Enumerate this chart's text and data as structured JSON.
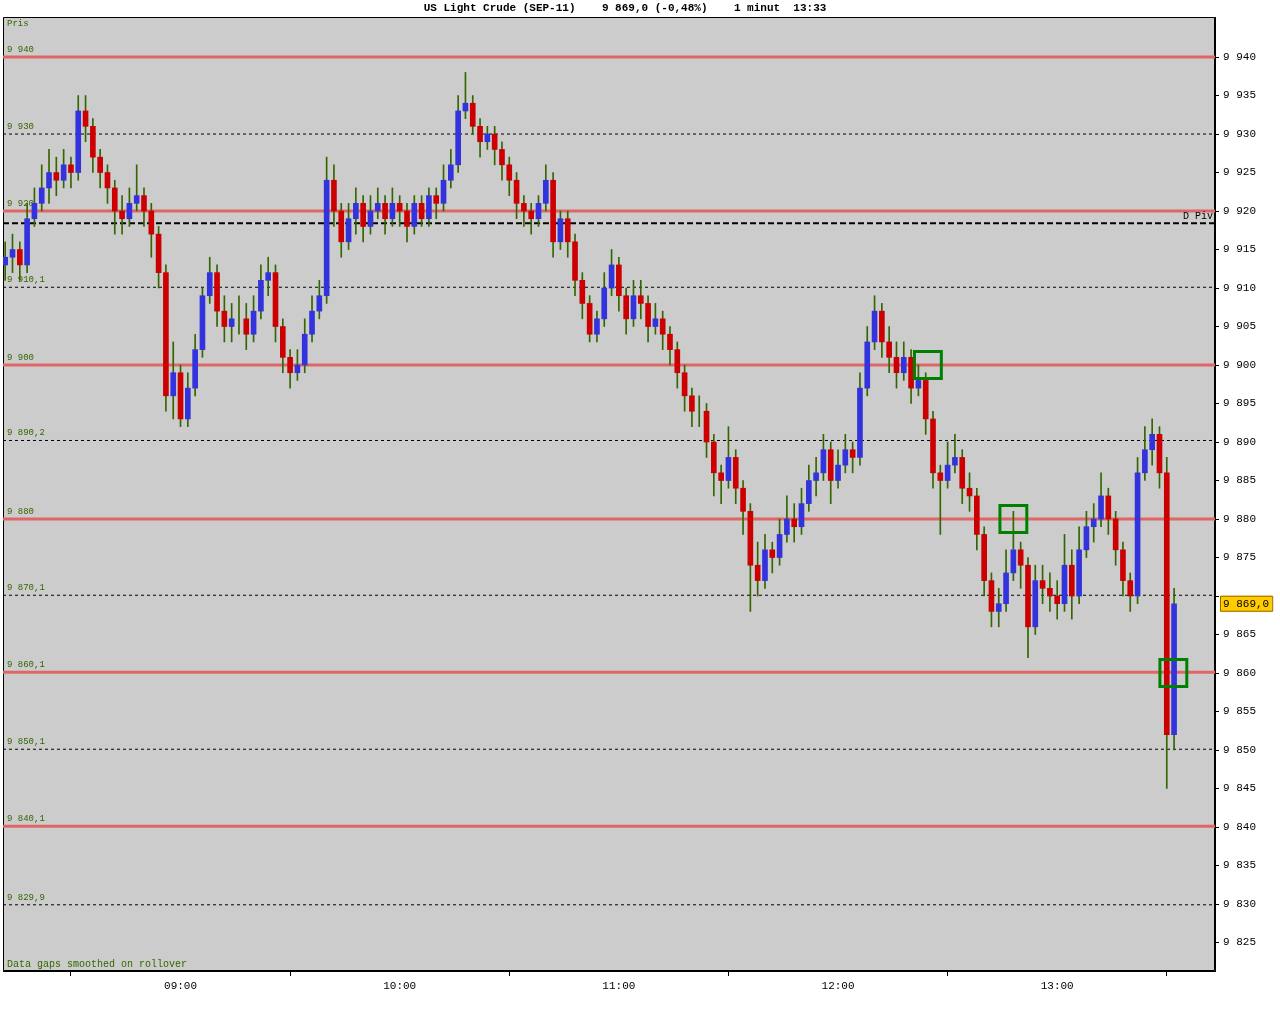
{
  "chart_data": {
    "type": "candlestick",
    "title": "US Light Crude (SEP-11)    9 869,0 (-0,48%)    1 minut  13:33",
    "ylabel": "Pris",
    "x": [
      8.2,
      8.2333,
      8.2667,
      8.3,
      8.3333,
      8.3667,
      8.4,
      8.4333,
      8.4667,
      8.5,
      8.5333,
      8.5667,
      8.6,
      8.6333,
      8.6667,
      8.7,
      8.7333,
      8.7667,
      8.8,
      8.8333,
      8.8667,
      8.9,
      8.9333,
      8.9667,
      9,
      9.0333,
      9.0667,
      9.1,
      9.1333,
      9.1667,
      9.2,
      9.2333,
      9.2667,
      9.3,
      9.3333,
      9.3667,
      9.4,
      9.4333,
      9.4667,
      9.5,
      9.5333,
      9.5667,
      9.6,
      9.6333,
      9.6667,
      9.7,
      9.7333,
      9.7667,
      9.8,
      9.8333,
      9.8667,
      9.9,
      9.9333,
      9.9667,
      10,
      10.0333,
      10.0667,
      10.1,
      10.1333,
      10.1667,
      10.2,
      10.2333,
      10.2667,
      10.3,
      10.3333,
      10.3667,
      10.4,
      10.4333,
      10.4667,
      10.5,
      10.5333,
      10.5667,
      10.6,
      10.6333,
      10.6667,
      10.7,
      10.7333,
      10.7667,
      10.8,
      10.8333,
      10.8667,
      10.9,
      10.9333,
      10.9667,
      11,
      11.0333,
      11.0667,
      11.1,
      11.1333,
      11.1667,
      11.2,
      11.2333,
      11.2667,
      11.3,
      11.3333,
      11.3667,
      11.4,
      11.4333,
      11.4667,
      11.5,
      11.5333,
      11.5667,
      11.6,
      11.6333,
      11.6667,
      11.7,
      11.7333,
      11.7667,
      11.8,
      11.8333,
      11.8667,
      11.9,
      11.9333,
      11.9667,
      12,
      12.0333,
      12.0667,
      12.1,
      12.1333,
      12.1667,
      12.2,
      12.2333,
      12.2667,
      12.3,
      12.3333,
      12.3667,
      12.4,
      12.4333,
      12.4667,
      12.5,
      12.5333,
      12.5667,
      12.6,
      12.6333,
      12.6667,
      12.7,
      12.7333,
      12.7667,
      12.8,
      12.8333,
      12.8667,
      12.9,
      12.9333,
      12.9667,
      13,
      13.0333,
      13.0667,
      13.1,
      13.1333,
      13.1667,
      13.2,
      13.2333,
      13.2667,
      13.3,
      13.3333,
      13.3667,
      13.4,
      13.4333,
      13.4667,
      13.5,
      13.5333
    ],
    "ohlc": [
      [
        9913,
        9916,
        9911,
        9914
      ],
      [
        9914,
        9917,
        9912,
        9915
      ],
      [
        9915,
        9916,
        9911,
        9913
      ],
      [
        9913,
        9921,
        9912,
        9919
      ],
      [
        9919,
        9923,
        9918,
        9921
      ],
      [
        9921,
        9926,
        9920,
        9923
      ],
      [
        9923,
        9928,
        9921,
        9925
      ],
      [
        9925,
        9927,
        9922,
        9924
      ],
      [
        9924,
        9928,
        9923,
        9926
      ],
      [
        9926,
        9927,
        9923,
        9925
      ],
      [
        9925,
        9935,
        9924,
        9933
      ],
      [
        9933,
        9935,
        9929,
        9931
      ],
      [
        9931,
        9932,
        9925,
        9927
      ],
      [
        9927,
        9928,
        9923,
        9925
      ],
      [
        9925,
        9926,
        9921,
        9923
      ],
      [
        9923,
        9924,
        9917,
        9920
      ],
      [
        9920,
        9922,
        9917,
        9919
      ],
      [
        9919,
        9923,
        9918,
        9921
      ],
      [
        9921,
        9926,
        9920,
        9922
      ],
      [
        9922,
        9923,
        9918,
        9920
      ],
      [
        9920,
        9921,
        9914,
        9917
      ],
      [
        9917,
        9918,
        9910,
        9912
      ],
      [
        9912,
        9913,
        9894,
        9896
      ],
      [
        9896,
        9903,
        9893,
        9899
      ],
      [
        9899,
        9900,
        9892,
        9893
      ],
      [
        9893,
        9899,
        9892,
        9897
      ],
      [
        9897,
        9904,
        9896,
        9902
      ],
      [
        9902,
        9910,
        9901,
        9909
      ],
      [
        9909,
        9914,
        9908,
        9912
      ],
      [
        9912,
        9913,
        9905,
        9907
      ],
      [
        9907,
        9909,
        9903,
        9905
      ],
      [
        9905,
        9908,
        9903,
        9906
      ],
      [
        9906,
        9909,
        9904,
        9906
      ],
      [
        9906,
        9908,
        9902,
        9904
      ],
      [
        9904,
        9909,
        9903,
        9907
      ],
      [
        9907,
        9913,
        9906,
        9911
      ],
      [
        9911,
        9914,
        9909,
        9912
      ],
      [
        9912,
        9913,
        9903,
        9905
      ],
      [
        9905,
        9906,
        9899,
        9901
      ],
      [
        9901,
        9902,
        9897,
        9899
      ],
      [
        9899,
        9902,
        9898,
        9900
      ],
      [
        9900,
        9906,
        9899,
        9904
      ],
      [
        9904,
        9909,
        9903,
        9907
      ],
      [
        9907,
        9911,
        9906,
        9909
      ],
      [
        9909,
        9927,
        9908,
        9924
      ],
      [
        9924,
        9926,
        9918,
        9920
      ],
      [
        9920,
        9921,
        9914,
        9916
      ],
      [
        9916,
        9921,
        9915,
        9919
      ],
      [
        9919,
        9923,
        9917,
        9921
      ],
      [
        9921,
        9922,
        9916,
        9918
      ],
      [
        9918,
        9922,
        9917,
        9920
      ],
      [
        9920,
        9923,
        9919,
        9921
      ],
      [
        9921,
        9922,
        9917,
        9919
      ],
      [
        9919,
        9923,
        9918,
        9921
      ],
      [
        9921,
        9922,
        9918,
        9920
      ],
      [
        9920,
        9921,
        9916,
        9918
      ],
      [
        9918,
        9922,
        9917,
        9921
      ],
      [
        9921,
        9922,
        9918,
        9919
      ],
      [
        9919,
        9923,
        9918,
        9922
      ],
      [
        9922,
        9923,
        9919,
        9921
      ],
      [
        9921,
        9926,
        9920,
        9924
      ],
      [
        9924,
        9928,
        9923,
        9926
      ],
      [
        9926,
        9935,
        9925,
        9933
      ],
      [
        9933,
        9938,
        9932,
        9934
      ],
      [
        9934,
        9935,
        9930,
        9931
      ],
      [
        9931,
        9932,
        9927,
        9929
      ],
      [
        9929,
        9931,
        9928,
        9930
      ],
      [
        9930,
        9931,
        9926,
        9928
      ],
      [
        9928,
        9929,
        9924,
        9926
      ],
      [
        9926,
        9927,
        9922,
        9924
      ],
      [
        9924,
        9925,
        9919,
        9921
      ],
      [
        9921,
        9922,
        9918,
        9920
      ],
      [
        9920,
        9921,
        9917,
        9919
      ],
      [
        9919,
        9922,
        9918,
        9921
      ],
      [
        9921,
        9926,
        9920,
        9924
      ],
      [
        9924,
        9925,
        9914,
        9916
      ],
      [
        9916,
        9920,
        9915,
        9919
      ],
      [
        9919,
        9920,
        9914,
        9916
      ],
      [
        9916,
        9917,
        9909,
        9911
      ],
      [
        9911,
        9912,
        9906,
        9908
      ],
      [
        9908,
        9909,
        9903,
        9904
      ],
      [
        9904,
        9907,
        9903,
        9906
      ],
      [
        9906,
        9912,
        9905,
        9910
      ],
      [
        9910,
        9915,
        9909,
        9913
      ],
      [
        9913,
        9914,
        9907,
        9909
      ],
      [
        9909,
        9910,
        9904,
        9906
      ],
      [
        9906,
        9911,
        9905,
        9909
      ],
      [
        9909,
        9911,
        9906,
        9908
      ],
      [
        9908,
        9909,
        9903,
        9905
      ],
      [
        9905,
        9908,
        9904,
        9906
      ],
      [
        9906,
        9907,
        9902,
        9904
      ],
      [
        9904,
        9905,
        9900,
        9902
      ],
      [
        9902,
        9903,
        9897,
        9899
      ],
      [
        9899,
        9900,
        9894,
        9896
      ],
      [
        9896,
        9897,
        9892,
        9894
      ],
      [
        9894,
        9896,
        9892,
        9894
      ],
      [
        9894,
        9895,
        9888,
        9890
      ],
      [
        9890,
        9891,
        9883,
        9886
      ],
      [
        9886,
        9887,
        9882,
        9885
      ],
      [
        9885,
        9892,
        9884,
        9888
      ],
      [
        9888,
        9889,
        9882,
        9884
      ],
      [
        9884,
        9885,
        9878,
        9881
      ],
      [
        9881,
        9882,
        9868,
        9874
      ],
      [
        9874,
        9877,
        9870,
        9872
      ],
      [
        9872,
        9878,
        9871,
        9876
      ],
      [
        9876,
        9877,
        9873,
        9875
      ],
      [
        9875,
        9880,
        9874,
        9878
      ],
      [
        9878,
        9883,
        9877,
        9880
      ],
      [
        9880,
        9882,
        9877,
        9879
      ],
      [
        9879,
        9884,
        9878,
        9882
      ],
      [
        9882,
        9887,
        9881,
        9885
      ],
      [
        9885,
        9888,
        9883,
        9886
      ],
      [
        9886,
        9891,
        9885,
        9889
      ],
      [
        9889,
        9890,
        9882,
        9885
      ],
      [
        9885,
        9889,
        9884,
        9887
      ],
      [
        9887,
        9891,
        9886,
        9889
      ],
      [
        9889,
        9890,
        9886,
        9888
      ],
      [
        9888,
        9899,
        9887,
        9897
      ],
      [
        9897,
        9905,
        9896,
        9903
      ],
      [
        9903,
        9909,
        9902,
        9907
      ],
      [
        9907,
        9908,
        9901,
        9903
      ],
      [
        9903,
        9905,
        9899,
        9901
      ],
      [
        9901,
        9903,
        9897,
        9899
      ],
      [
        9899,
        9903,
        9898,
        9901
      ],
      [
        9901,
        9902,
        9895,
        9897
      ],
      [
        9897,
        9900,
        9896,
        9898
      ],
      [
        9898,
        9899,
        9891,
        9893
      ],
      [
        9893,
        9894,
        9884,
        9886
      ],
      [
        9886,
        9887,
        9878,
        9885
      ],
      [
        9885,
        9890,
        9884,
        9887
      ],
      [
        9887,
        9891,
        9886,
        9888
      ],
      [
        9888,
        9889,
        9882,
        9884
      ],
      [
        9884,
        9886,
        9881,
        9883
      ],
      [
        9883,
        9884,
        9876,
        9878
      ],
      [
        9878,
        9879,
        9870,
        9872
      ],
      [
        9872,
        9873,
        9866,
        9868
      ],
      [
        9868,
        9871,
        9866,
        9869
      ],
      [
        9869,
        9876,
        9868,
        9873
      ],
      [
        9873,
        9881,
        9872,
        9876
      ],
      [
        9876,
        9877,
        9871,
        9874
      ],
      [
        9874,
        9875,
        9862,
        9866
      ],
      [
        9866,
        9874,
        9865,
        9872
      ],
      [
        9872,
        9874,
        9869,
        9871
      ],
      [
        9871,
        9873,
        9868,
        9870
      ],
      [
        9870,
        9872,
        9867,
        9869
      ],
      [
        9869,
        9878,
        9868,
        9874
      ],
      [
        9874,
        9876,
        9867,
        9870
      ],
      [
        9870,
        9879,
        9869,
        9876
      ],
      [
        9876,
        9881,
        9875,
        9879
      ],
      [
        9879,
        9882,
        9877,
        9880
      ],
      [
        9880,
        9886,
        9879,
        9883
      ],
      [
        9883,
        9884,
        9878,
        9880
      ],
      [
        9880,
        9881,
        9874,
        9876
      ],
      [
        9876,
        9877,
        9870,
        9872
      ],
      [
        9872,
        9873,
        9868,
        9870
      ],
      [
        9870,
        9888,
        9869,
        9886
      ],
      [
        9886,
        9892,
        9885,
        9889
      ],
      [
        9889,
        9893,
        9887,
        9891
      ],
      [
        9891,
        9892,
        9884,
        9886
      ],
      [
        9886,
        9888,
        9845,
        9852
      ],
      [
        9852,
        9871,
        9850,
        9869
      ]
    ],
    "xlim": [
      8.19,
      13.72
    ],
    "ylim": [
      9821.3,
      9945.2
    ],
    "xticks": [
      {
        "value": 9,
        "label": "09:00"
      },
      {
        "value": 10,
        "label": "10:00"
      },
      {
        "value": 11,
        "label": "11:00"
      },
      {
        "value": 12,
        "label": "12:00"
      },
      {
        "value": 13,
        "label": "13:00"
      }
    ],
    "yticks": [
      {
        "value": 9825,
        "label": "9 825"
      },
      {
        "value": 9830,
        "label": "9 830"
      },
      {
        "value": 9835,
        "label": "9 835"
      },
      {
        "value": 9840,
        "label": "9 840"
      },
      {
        "value": 9845,
        "label": "9 845"
      },
      {
        "value": 9850,
        "label": "9 850"
      },
      {
        "value": 9855,
        "label": "9 855"
      },
      {
        "value": 9860,
        "label": "9 860"
      },
      {
        "value": 9865,
        "label": "9 865"
      },
      {
        "value": 9870,
        "label": null
      },
      {
        "value": 9875,
        "label": "9 875"
      },
      {
        "value": 9880,
        "label": "9 880"
      },
      {
        "value": 9885,
        "label": "9 885"
      },
      {
        "value": 9890,
        "label": "9 890"
      },
      {
        "value": 9895,
        "label": "9 895"
      },
      {
        "value": 9900,
        "label": "9 900"
      },
      {
        "value": 9905,
        "label": "9 905"
      },
      {
        "value": 9910,
        "label": "9 910"
      },
      {
        "value": 9915,
        "label": "9 915"
      },
      {
        "value": 9920,
        "label": "9 920"
      },
      {
        "value": 9925,
        "label": "9 925"
      },
      {
        "value": 9930,
        "label": "9 930"
      },
      {
        "value": 9935,
        "label": "9 935"
      },
      {
        "value": 9940,
        "label": "9 940"
      }
    ],
    "ref_lines": [
      {
        "axis": "y",
        "value": 9940,
        "label": "9 940",
        "color": "#e06666",
        "line_style": "solid"
      },
      {
        "axis": "y",
        "value": 9930,
        "label": "9 930",
        "color": "#000000",
        "line_style": "dotted"
      },
      {
        "axis": "y",
        "value": 9920,
        "label": "9 920",
        "color": "#e06666",
        "line_style": "solid"
      },
      {
        "axis": "y",
        "value": 9918.4,
        "label": "D Piv",
        "color": "#000000",
        "line_style": "dashed"
      },
      {
        "axis": "y",
        "value": 9910.1,
        "label": "9 910,1",
        "color": "#000000",
        "line_style": "dotted"
      },
      {
        "axis": "y",
        "value": 9900,
        "label": "9 900",
        "color": "#e06666",
        "line_style": "solid"
      },
      {
        "axis": "y",
        "value": 9890.2,
        "label": "9 890,2",
        "color": "#000000",
        "line_style": "dotted"
      },
      {
        "axis": "y",
        "value": 9880,
        "label": "9 880",
        "color": "#e06666",
        "line_style": "solid"
      },
      {
        "axis": "y",
        "value": 9870.1,
        "label": "9 870,1",
        "color": "#000000",
        "line_style": "dotted"
      },
      {
        "axis": "y",
        "value": 9860.1,
        "label": "9 860,1",
        "color": "#e06666",
        "line_style": "solid"
      },
      {
        "axis": "y",
        "value": 9850.1,
        "label": "9 850,1",
        "color": "#000000",
        "line_style": "dotted"
      },
      {
        "axis": "y",
        "value": 9840.1,
        "label": "9 840,1",
        "color": "#e06666",
        "line_style": "solid"
      },
      {
        "axis": "y",
        "value": 9829.9,
        "label": "9 829,9",
        "color": "#000000",
        "line_style": "dotted"
      }
    ],
    "annotations": [
      "Data gaps smoothed on rollover",
      "9 869,0"
    ],
    "series": [
      {
        "type": "scatter",
        "color": "#008000",
        "x": [
          12.41,
          12.8,
          13.53
        ],
        "values": [
          9900,
          9880,
          9860
        ]
      }
    ],
    "marker": "square",
    "grid": false,
    "legend": false
  }
}
